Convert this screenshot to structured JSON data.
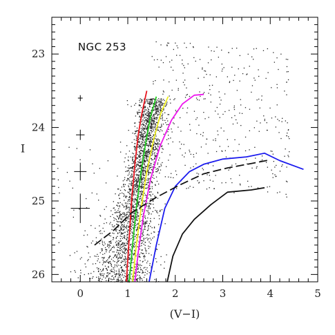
{
  "chart_data": {
    "type": "scatter",
    "title": "",
    "xlabel": "(V−I)",
    "ylabel": "I",
    "xlim": [
      -0.6,
      5
    ],
    "ylim": [
      26.1,
      22.5
    ],
    "y_inverted": true,
    "xticks": [
      0,
      1,
      2,
      3,
      4,
      5
    ],
    "yticks": [
      23,
      24,
      25,
      26
    ],
    "xtick_labels": [
      "0",
      "1",
      "2",
      "3",
      "4",
      "5"
    ],
    "ytick_labels": [
      "23",
      "24",
      "25",
      "26"
    ],
    "annotation": "NGC 253",
    "grid": false,
    "legend": "none",
    "scatter_points_note": "",
    "error_bars": [
      {
        "x": 0,
        "y": 23.6,
        "xerr": 0.05,
        "yerr": 0.04
      },
      {
        "x": 0,
        "y": 24.1,
        "xerr": 0.09,
        "yerr": 0.07
      },
      {
        "x": 0,
        "y": 24.6,
        "xerr": 0.13,
        "yerr": 0.12
      },
      {
        "x": 0,
        "y": 25.1,
        "xerr": 0.2,
        "yerr": 0.2
      }
    ],
    "series": [
      {
        "color": "#e8141e",
        "style": "solid",
        "points": [
          [
            0.97,
            26.1
          ],
          [
            1.02,
            25.6
          ],
          [
            1.08,
            25.0
          ],
          [
            1.15,
            24.5
          ],
          [
            1.22,
            24.1
          ],
          [
            1.3,
            23.8
          ],
          [
            1.4,
            23.5
          ]
        ]
      },
      {
        "color": "#1fcc1f",
        "style": "solid",
        "points": [
          [
            1.03,
            26.1
          ],
          [
            1.1,
            25.6
          ],
          [
            1.18,
            25.1
          ],
          [
            1.28,
            24.6
          ],
          [
            1.38,
            24.2
          ],
          [
            1.48,
            23.85
          ],
          [
            1.6,
            23.58
          ]
        ]
      },
      {
        "color": "#f0f020",
        "style": "solid",
        "points": [
          [
            1.1,
            26.1
          ],
          [
            1.18,
            25.6
          ],
          [
            1.28,
            25.1
          ],
          [
            1.4,
            24.6
          ],
          [
            1.55,
            24.15
          ],
          [
            1.7,
            23.8
          ],
          [
            1.85,
            23.58
          ]
        ]
      },
      {
        "color": "#ee16ee",
        "style": "solid",
        "points": [
          [
            1.15,
            26.1
          ],
          [
            1.22,
            25.7
          ],
          [
            1.33,
            25.2
          ],
          [
            1.48,
            24.7
          ],
          [
            1.68,
            24.25
          ],
          [
            1.92,
            23.9
          ],
          [
            2.15,
            23.68
          ],
          [
            2.4,
            23.56
          ],
          [
            2.6,
            23.55
          ]
        ]
      },
      {
        "color": "#1a1aee",
        "style": "solid",
        "points": [
          [
            1.45,
            26.1
          ],
          [
            1.6,
            25.6
          ],
          [
            1.78,
            25.1
          ],
          [
            2.0,
            24.8
          ],
          [
            2.3,
            24.6
          ],
          [
            2.6,
            24.5
          ],
          [
            3.0,
            24.43
          ],
          [
            3.5,
            24.4
          ],
          [
            3.88,
            24.35
          ],
          [
            4.2,
            24.45
          ],
          [
            4.7,
            24.57
          ]
        ]
      },
      {
        "color": "#111111",
        "style": "solid",
        "points": [
          [
            1.83,
            26.1
          ],
          [
            1.95,
            25.75
          ],
          [
            2.15,
            25.45
          ],
          [
            2.4,
            25.25
          ],
          [
            2.75,
            25.05
          ],
          [
            3.1,
            24.88
          ],
          [
            3.6,
            24.85
          ],
          [
            3.88,
            24.82
          ]
        ]
      },
      {
        "color": "#111111",
        "style": "dashed",
        "points": [
          [
            0.3,
            25.6
          ],
          [
            0.7,
            25.4
          ],
          [
            1.1,
            25.15
          ],
          [
            1.6,
            24.95
          ],
          [
            2.1,
            24.78
          ],
          [
            2.6,
            24.63
          ],
          [
            3.1,
            24.55
          ],
          [
            3.6,
            24.49
          ],
          [
            4.0,
            24.44
          ]
        ]
      }
    ]
  }
}
